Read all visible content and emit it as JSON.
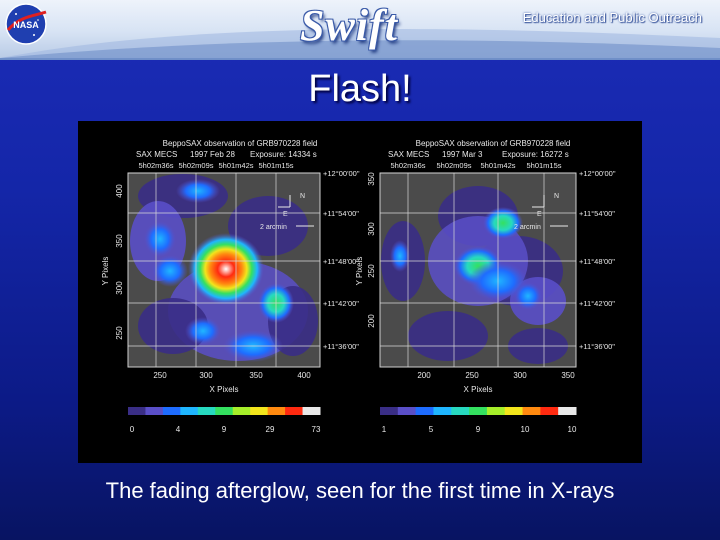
{
  "header": {
    "logo_left": "NASA",
    "logo_center": "Swift",
    "outreach_text": "Education and Public Outreach"
  },
  "title": "Flash!",
  "figure": {
    "panels": [
      {
        "title_line1": "BeppoSAX observation of GRB970228 field",
        "title_line2_a": "SAX MECS",
        "title_line2_b": "1997 Feb 28",
        "title_line2_c": "Exposure: 14334 s",
        "ra_labels": [
          "5h02m36s",
          "5h02m09s",
          "5h01m42s",
          "5h01m15s"
        ],
        "dec_labels": [
          "+12°00'00\"",
          "+11°54'00\"",
          "+11°48'00\"",
          "+11°42'00\"",
          "+11°36'00\""
        ],
        "y_ticks": [
          "400",
          "350",
          "300",
          "250"
        ],
        "x_ticks": [
          "250",
          "300",
          "350",
          "400"
        ],
        "ylabel": "Y Pixels",
        "xlabel": "X Pixels",
        "compass_n": "N",
        "compass_e": "E",
        "scale_label": "2 arcmin",
        "colorbar_labels": [
          "0",
          "4",
          "9",
          "29",
          "73"
        ]
      },
      {
        "title_line1": "BeppoSAX observation of GRB970228 field",
        "title_line2_a": "SAX MECS",
        "title_line2_b": "1997 Mar  3",
        "title_line2_c": "Exposure: 16272 s",
        "ra_labels": [
          "5h02m36s",
          "5h02m09s",
          "5h01m42s",
          "5h01m15s"
        ],
        "dec_labels": [
          "+12°00'00\"",
          "+11°54'00\"",
          "+11°48'00\"",
          "+11°42'00\"",
          "+11°36'00\""
        ],
        "y_ticks": [
          "350",
          "300",
          "250",
          "200"
        ],
        "x_ticks": [
          "200",
          "250",
          "300",
          "350"
        ],
        "ylabel": "Y Pixels",
        "xlabel": "X Pixels",
        "compass_n": "N",
        "compass_e": "E",
        "scale_label": "2 arcmin",
        "colorbar_labels": [
          "1",
          "5",
          "9",
          "10",
          "10"
        ]
      }
    ],
    "colormap": [
      "#3a2e86",
      "#5a4fc8",
      "#1e6cff",
      "#1fb6ff",
      "#27d9c0",
      "#34e060",
      "#a6ee2a",
      "#f2e51c",
      "#ff8a10",
      "#ff2a10",
      "#e8e8e8"
    ]
  },
  "caption": "The fading afterglow, seen for the first time in X-rays"
}
